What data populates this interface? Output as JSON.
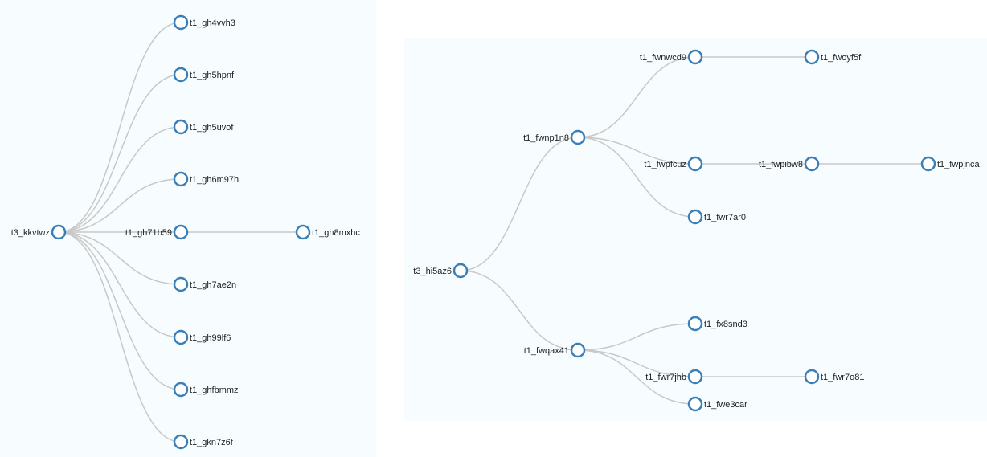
{
  "colors": {
    "node_stroke": "#3a7fb8",
    "node_fill": "#ffffff",
    "link": "#c8c8c8",
    "panel_background": "#f7fdfe"
  },
  "trees": [
    {
      "root": {
        "label": "t3_kkvtwz",
        "children": [
          {
            "label": "t1_gh4vvh3",
            "children": []
          },
          {
            "label": "t1_gh5hpnf",
            "children": []
          },
          {
            "label": "t1_gh5uvof",
            "children": []
          },
          {
            "label": "t1_gh6m97h",
            "children": []
          },
          {
            "label": "t1_gh71b59",
            "children": [
              {
                "label": "t1_gh8mxhc",
                "children": []
              }
            ]
          },
          {
            "label": "t1_gh7ae2n",
            "children": []
          },
          {
            "label": "t1_gh99lf6",
            "children": []
          },
          {
            "label": "t1_ghfbmmz",
            "children": []
          },
          {
            "label": "t1_gkn7z6f",
            "children": []
          }
        ]
      }
    },
    {
      "root": {
        "label": "t3_hi5az6",
        "children": [
          {
            "label": "t1_fwnp1n8",
            "children": [
              {
                "label": "t1_fwnwcd9",
                "children": [
                  {
                    "label": "t1_fwoyf5f",
                    "children": []
                  }
                ]
              },
              {
                "label": "t1_fwpfcuz",
                "children": [
                  {
                    "label": "t1_fwpibw8",
                    "children": [
                      {
                        "label": "t1_fwpjnca",
                        "children": []
                      }
                    ]
                  }
                ]
              },
              {
                "label": "t1_fwr7ar0",
                "children": []
              }
            ]
          },
          {
            "label": "t1_fwqax41",
            "children": [
              {
                "label": "t1_fx8snd3",
                "children": []
              },
              {
                "label": "t1_fwr7jhb",
                "children": [
                  {
                    "label": "t1_fwr7o81",
                    "children": []
                  }
                ]
              },
              {
                "label": "t1_fwe3car",
                "children": []
              }
            ]
          }
        ]
      }
    }
  ]
}
